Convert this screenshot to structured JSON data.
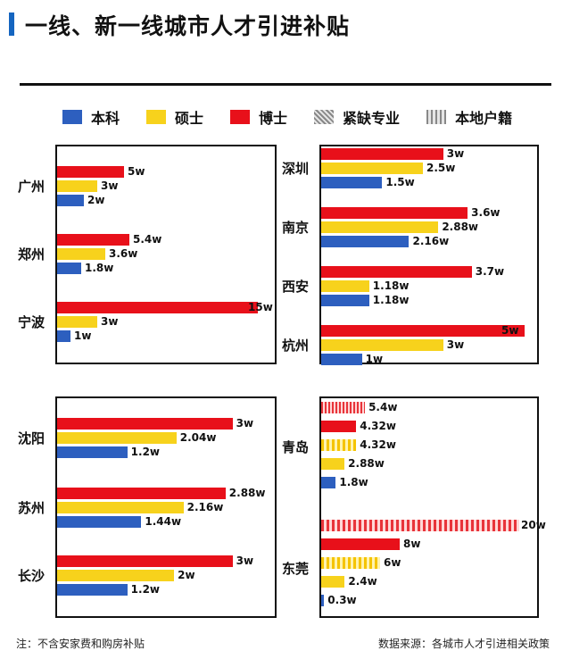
{
  "page": {
    "title": "一线、新一线城市人才引进补贴",
    "footnote_left": "注：不含安家费和购房补贴",
    "footnote_right": "数据来源：各城市人才引进相关政策"
  },
  "colors": {
    "本科": "#2d5fbf",
    "硕士": "#f7d21c",
    "博士": "#e8101a",
    "accent": "#1565c0"
  },
  "legend": [
    {
      "label": "本科",
      "style": "solid",
      "color": "#2d5fbf"
    },
    {
      "label": "硕士",
      "style": "solid",
      "color": "#f7d21c"
    },
    {
      "label": "博士",
      "style": "solid",
      "color": "#e8101a"
    },
    {
      "label": "紧缺专业",
      "style": "hatched-diagonal"
    },
    {
      "label": "本地户籍",
      "style": "hatched-vertical"
    }
  ],
  "chart_data": [
    {
      "type": "bar",
      "orientation": "horizontal",
      "unit": "w",
      "categories": [
        "广州",
        "郑州",
        "宁波"
      ],
      "series": [
        {
          "name": "博士",
          "values": [
            5,
            5.4,
            15
          ],
          "labels": [
            "5w",
            "5.4w",
            "15w"
          ]
        },
        {
          "name": "硕士",
          "values": [
            3,
            3.6,
            3
          ],
          "labels": [
            "3w",
            "3.6w",
            "3w"
          ]
        },
        {
          "name": "本科",
          "values": [
            2,
            1.8,
            1
          ],
          "labels": [
            "2w",
            "1.8w",
            "1w"
          ]
        }
      ],
      "xlim": [
        0,
        15
      ]
    },
    {
      "type": "bar",
      "orientation": "horizontal",
      "unit": "w",
      "categories": [
        "深圳",
        "南京",
        "西安",
        "杭州"
      ],
      "series": [
        {
          "name": "博士",
          "values": [
            3,
            3.6,
            3.7,
            5
          ],
          "labels": [
            "3w",
            "3.6w",
            "3.7w",
            "5w"
          ]
        },
        {
          "name": "硕士",
          "values": [
            2.5,
            2.88,
            1.18,
            3
          ],
          "labels": [
            "2.5w",
            "2.88w",
            "1.18w",
            "3w"
          ]
        },
        {
          "name": "本科",
          "values": [
            1.5,
            2.16,
            1.18,
            1
          ],
          "labels": [
            "1.5w",
            "2.16w",
            "1.18w",
            "1w"
          ]
        }
      ],
      "xlim": [
        0,
        5
      ]
    },
    {
      "type": "bar",
      "orientation": "horizontal",
      "unit": "w",
      "categories": [
        "沈阳",
        "苏州",
        "长沙"
      ],
      "series": [
        {
          "name": "博士",
          "values": [
            3,
            2.88,
            3
          ],
          "labels": [
            "3w",
            "2.88w",
            "3w"
          ]
        },
        {
          "name": "硕士",
          "values": [
            2.04,
            2.16,
            2
          ],
          "labels": [
            "2.04w",
            "2.16w",
            "2w"
          ]
        },
        {
          "name": "本科",
          "values": [
            1.2,
            1.44,
            1.2
          ],
          "labels": [
            "1.2w",
            "1.44w",
            "1.2w"
          ]
        }
      ],
      "xlim": [
        0,
        3
      ]
    },
    {
      "type": "bar",
      "orientation": "horizontal",
      "unit": "w",
      "categories": [
        "青岛",
        "东莞"
      ],
      "bars": [
        {
          "city": "青岛",
          "series": "博士",
          "variant": "紧缺专业",
          "value": 5.4,
          "label": "5.4w"
        },
        {
          "city": "青岛",
          "series": "博士",
          "variant": "",
          "value": 4.32,
          "label": "4.32w"
        },
        {
          "city": "青岛",
          "series": "硕士",
          "variant": "紧缺专业",
          "value": 4.32,
          "label": "4.32w"
        },
        {
          "city": "青岛",
          "series": "硕士",
          "variant": "",
          "value": 2.88,
          "label": "2.88w"
        },
        {
          "city": "青岛",
          "series": "本科",
          "variant": "",
          "value": 1.8,
          "label": "1.8w"
        },
        {
          "city": "东莞",
          "series": "博士",
          "variant": "本地户籍",
          "value": 20,
          "label": "20w"
        },
        {
          "city": "东莞",
          "series": "博士",
          "variant": "",
          "value": 8,
          "label": "8w"
        },
        {
          "city": "东莞",
          "series": "硕士",
          "variant": "本地户籍",
          "value": 6,
          "label": "6w"
        },
        {
          "city": "东莞",
          "series": "硕士",
          "variant": "",
          "value": 2.4,
          "label": "2.4w"
        },
        {
          "city": "东莞",
          "series": "本科",
          "variant": "",
          "value": 0.3,
          "label": "0.3w"
        }
      ],
      "xlim": [
        0,
        20
      ]
    }
  ]
}
